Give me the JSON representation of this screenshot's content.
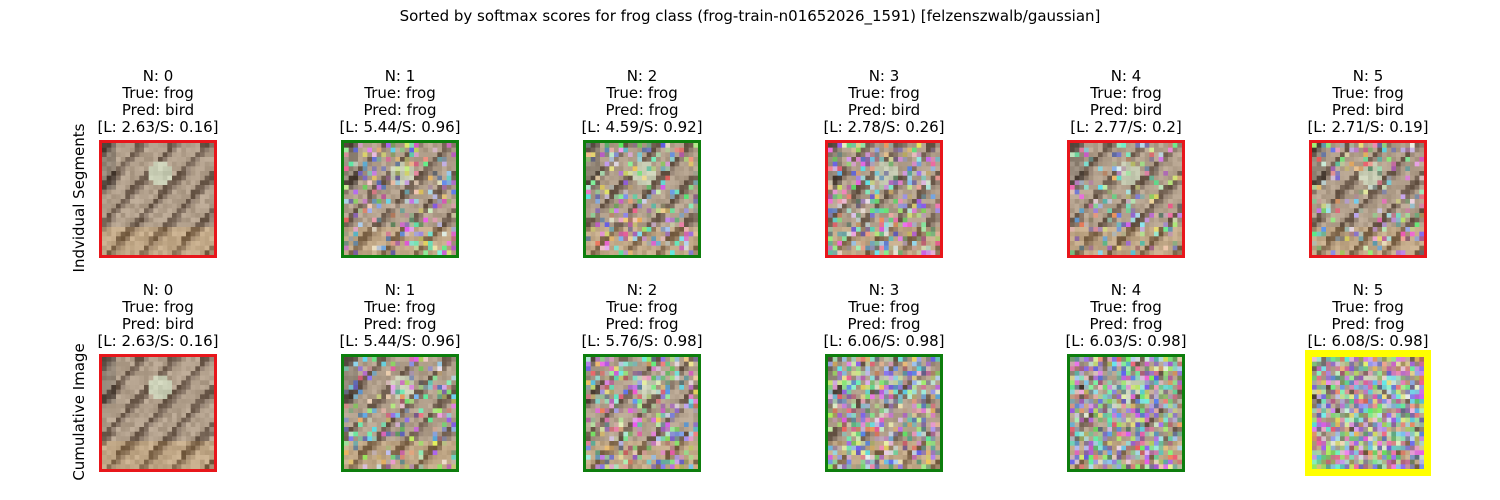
{
  "figure": {
    "title": "Sorted by softmax scores for frog class (frog-train-n01652026_1591) [felzenszwalb/gaussian]"
  },
  "rows": [
    {
      "label": "Indvidual Segments",
      "panels": [
        {
          "n": "N: 0",
          "true": "True: frog",
          "pred": "Pred: bird",
          "score": "[L: 2.63/S: 0.16]",
          "border": "#e8161b",
          "noise": 0.0
        },
        {
          "n": "N: 1",
          "true": "True: frog",
          "pred": "Pred: frog",
          "score": "[L: 5.44/S: 0.96]",
          "border": "#0d7e0d",
          "noise": 0.3
        },
        {
          "n": "N: 2",
          "true": "True: frog",
          "pred": "Pred: frog",
          "score": "[L: 4.59/S: 0.92]",
          "border": "#0d7e0d",
          "noise": 0.3
        },
        {
          "n": "N: 3",
          "true": "True: frog",
          "pred": "Pred: bird",
          "score": "[L: 2.78/S: 0.26]",
          "border": "#e8161b",
          "noise": 0.45
        },
        {
          "n": "N: 4",
          "true": "True: frog",
          "pred": "Pred: bird",
          "score": "[L: 2.77/S: 0.2]",
          "border": "#e8161b",
          "noise": 0.25
        },
        {
          "n": "N: 5",
          "true": "True: frog",
          "pred": "Pred: bird",
          "score": "[L: 2.71/S: 0.19]",
          "border": "#e8161b",
          "noise": 0.25
        }
      ]
    },
    {
      "label": "Cumulative Image",
      "panels": [
        {
          "n": "N: 0",
          "true": "True: frog",
          "pred": "Pred: bird",
          "score": "[L: 2.63/S: 0.16]",
          "border": "#e8161b",
          "noise": 0.0
        },
        {
          "n": "N: 1",
          "true": "True: frog",
          "pred": "Pred: frog",
          "score": "[L: 5.44/S: 0.96]",
          "border": "#0d7e0d",
          "noise": 0.3
        },
        {
          "n": "N: 2",
          "true": "True: frog",
          "pred": "Pred: frog",
          "score": "[L: 5.76/S: 0.98]",
          "border": "#0d7e0d",
          "noise": 0.45
        },
        {
          "n": "N: 3",
          "true": "True: frog",
          "pred": "Pred: frog",
          "score": "[L: 6.06/S: 0.98]",
          "border": "#0d7e0d",
          "noise": 0.6
        },
        {
          "n": "N: 4",
          "true": "True: frog",
          "pred": "Pred: frog",
          "score": "[L: 6.03/S: 0.98]",
          "border": "#0d7e0d",
          "noise": 0.75
        },
        {
          "n": "N: 5",
          "true": "True: frog",
          "pred": "Pred: frog",
          "score": "[L: 6.08/S: 0.98]",
          "border": "#ffff00",
          "noise": 0.9,
          "highlight": true
        }
      ]
    }
  ]
}
